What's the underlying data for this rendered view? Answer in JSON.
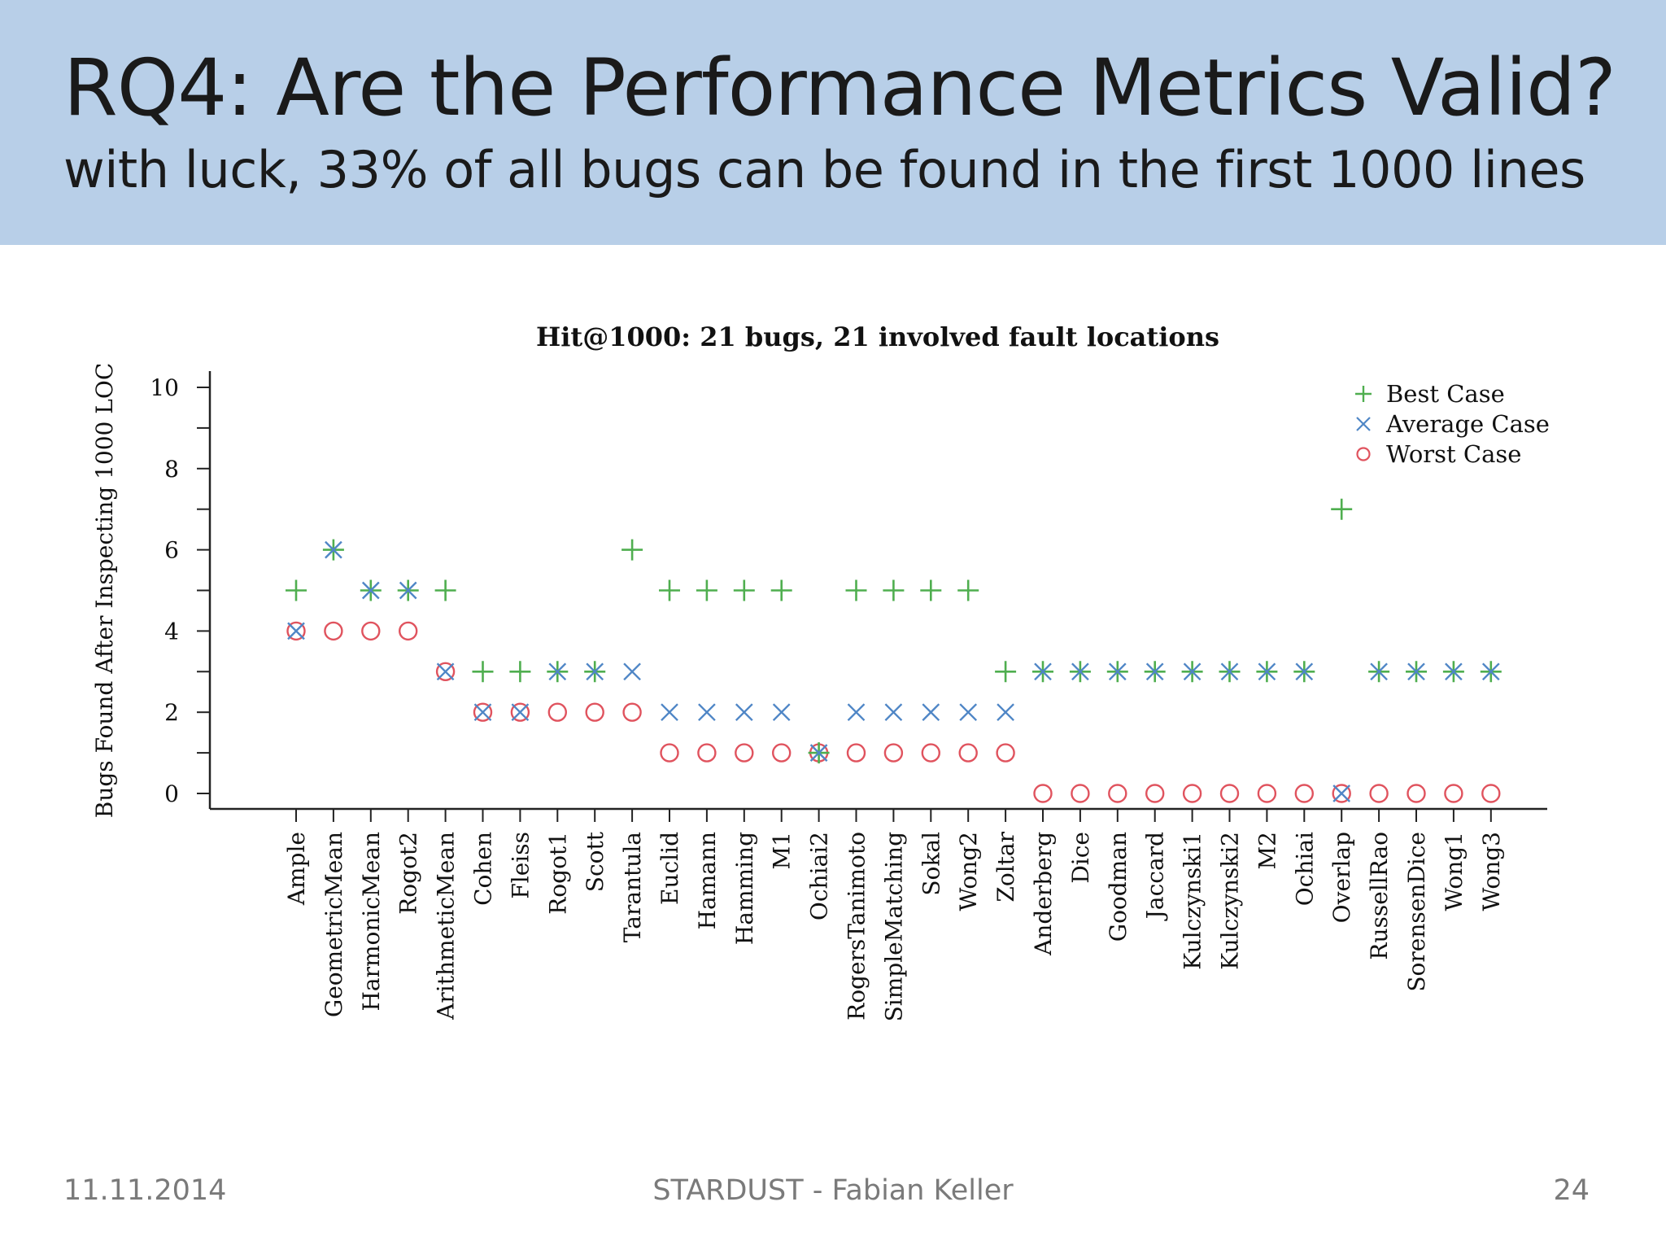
{
  "slide": {
    "title": "RQ4: Are the Performance Metrics Valid?",
    "subtitle": "with luck, 33% of all bugs can be found in the first 1000 lines",
    "footer_date": "11.11.2014",
    "footer_center": "STARDUST - Fabian Keller",
    "page_number": "24"
  },
  "chart_data": {
    "type": "scatter",
    "title": "Hit@1000: 21 bugs, 21 involved fault locations",
    "xlabel": "",
    "ylabel": "Bugs Found After Inspecting 1000 LOC",
    "ylim": [
      0,
      10
    ],
    "yticks": [
      0,
      2,
      4,
      6,
      8,
      10
    ],
    "grid": false,
    "legend_position": "top-right",
    "categories": [
      "Ample",
      "GeometricMean",
      "HarmonicMean",
      "Rogot2",
      "ArithmeticMean",
      "Cohen",
      "Fleiss",
      "Rogot1",
      "Scott",
      "Tarantula",
      "Euclid",
      "Hamann",
      "Hamming",
      "M1",
      "Ochiai2",
      "RogersTanimoto",
      "SimpleMatching",
      "Sokal",
      "Wong2",
      "Zoltar",
      "Anderberg",
      "Dice",
      "Goodman",
      "Jaccard",
      "Kulczynski1",
      "Kulczynski2",
      "M2",
      "Ochiai",
      "Overlap",
      "RussellRao",
      "SorensenDice",
      "Wong1",
      "Wong3"
    ],
    "series": [
      {
        "name": "Best Case",
        "marker": "plus",
        "color": "#4fae4f",
        "values": [
          5,
          6,
          5,
          5,
          5,
          3,
          3,
          3,
          3,
          6,
          5,
          5,
          5,
          5,
          1,
          5,
          5,
          5,
          5,
          3,
          3,
          3,
          3,
          3,
          3,
          3,
          3,
          3,
          7,
          3,
          3,
          3,
          3
        ]
      },
      {
        "name": "Average Case",
        "marker": "cross",
        "color": "#4f86c6",
        "values": [
          4,
          6,
          5,
          5,
          3,
          2,
          2,
          3,
          3,
          3,
          2,
          2,
          2,
          2,
          1,
          2,
          2,
          2,
          2,
          2,
          3,
          3,
          3,
          3,
          3,
          3,
          3,
          3,
          0,
          3,
          3,
          3,
          3
        ]
      },
      {
        "name": "Worst Case",
        "marker": "circle",
        "color": "#e0535e",
        "values": [
          4,
          4,
          4,
          4,
          3,
          2,
          2,
          2,
          2,
          2,
          1,
          1,
          1,
          1,
          1,
          1,
          1,
          1,
          1,
          1,
          0,
          0,
          0,
          0,
          0,
          0,
          0,
          0,
          0,
          0,
          0,
          0,
          0
        ]
      }
    ]
  }
}
